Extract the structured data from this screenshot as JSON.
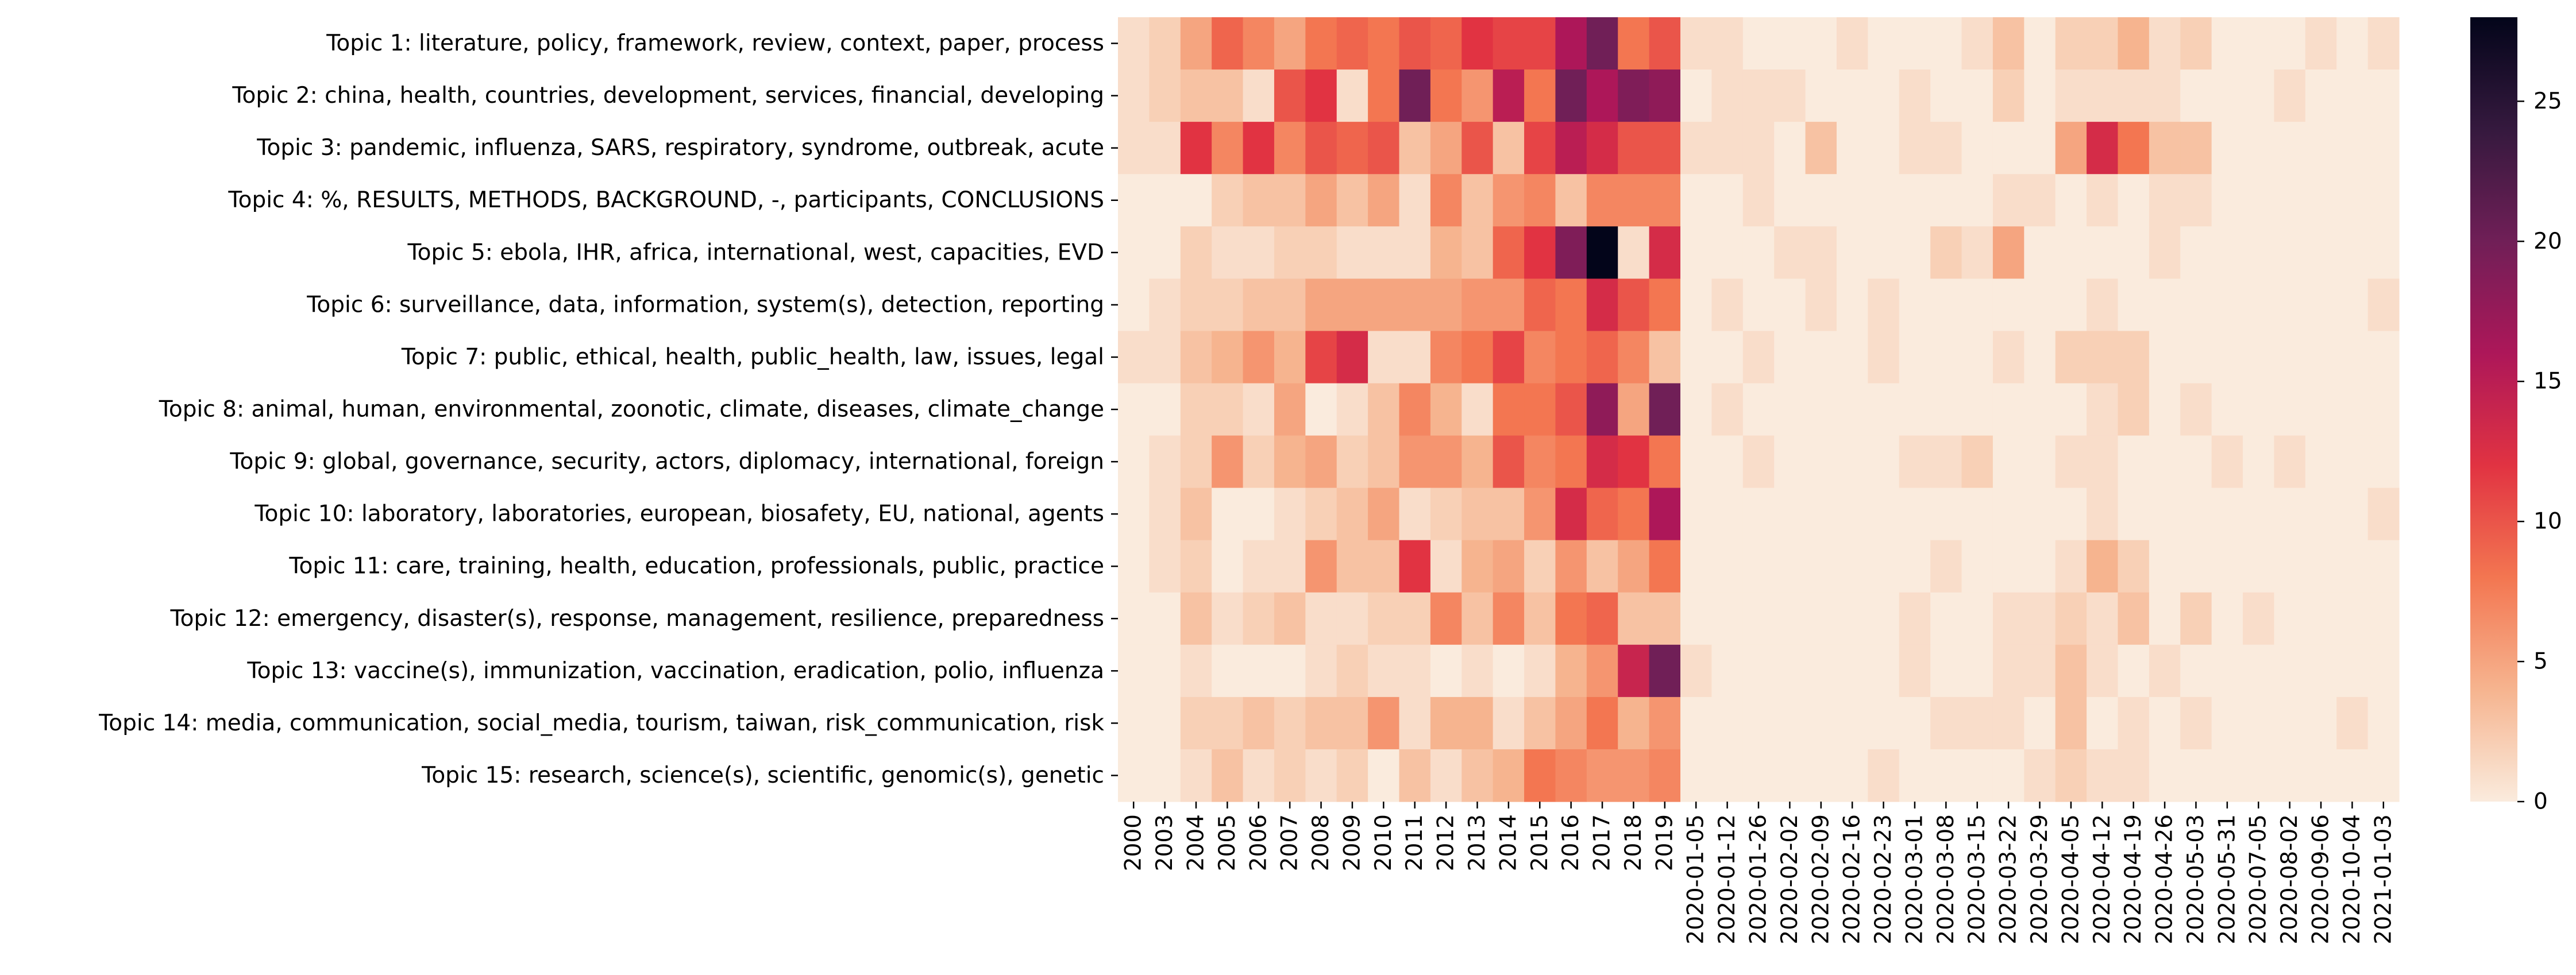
{
  "chart_data": {
    "type": "heatmap",
    "title": "",
    "xlabel": "",
    "ylabel": "",
    "colormap": "rocket_r",
    "colormap_stops": [
      "#faebdd",
      "#f6b48f",
      "#f37651",
      "#e13342",
      "#ad1759",
      "#701f57",
      "#35193e",
      "#03051a"
    ],
    "vmin": 0,
    "vmax": 28,
    "colorbar_ticks": [
      0,
      5,
      10,
      15,
      20,
      25
    ],
    "x": [
      "2000",
      "2003",
      "2004",
      "2005",
      "2006",
      "2007",
      "2008",
      "2009",
      "2010",
      "2011",
      "2012",
      "2013",
      "2014",
      "2015",
      "2016",
      "2017",
      "2018",
      "2019",
      "2020-01-05",
      "2020-01-12",
      "2020-01-26",
      "2020-02-02",
      "2020-02-09",
      "2020-02-16",
      "2020-02-23",
      "2020-03-01",
      "2020-03-08",
      "2020-03-15",
      "2020-03-22",
      "2020-03-29",
      "2020-04-05",
      "2020-04-12",
      "2020-04-19",
      "2020-04-26",
      "2020-05-03",
      "2020-05-31",
      "2020-07-05",
      "2020-08-02",
      "2020-09-06",
      "2020-10-04",
      "2021-01-03"
    ],
    "y": [
      "Topic 1: literature, policy, framework, review, context, paper, process",
      "Topic 2: china, health, countries, development, services, financial, developing",
      "Topic 3: pandemic, influenza, SARS, respiratory, syndrome, outbreak, acute",
      "Topic 4: %, RESULTS, METHODS, BACKGROUND, -, participants, CONCLUSIONS",
      "Topic 5: ebola, IHR, africa, international, west, capacities, EVD",
      "Topic 6: surveillance, data, information, system(s), detection, reporting",
      "Topic 7: public, ethical, health, public_health, law, issues, legal",
      "Topic 8: animal, human, environmental, zoonotic, climate, diseases, climate_change",
      "Topic 9: global, governance, security, actors, diplomacy, international, foreign",
      "Topic 10: laboratory, laboratories, european, biosafety, EU, national, agents",
      "Topic 11: care, training, health, education, professionals, public, practice",
      "Topic 12: emergency, disaster(s), response, management, resilience, preparedness",
      "Topic 13: vaccine(s), immunization, vaccination, eradication, polio, influenza",
      "Topic 14: media, communication, social_media, tourism, taiwan, risk_communication, risk",
      "Topic 15: research, science(s), scientific, genomic(s), genetic"
    ],
    "values": [
      [
        1,
        2,
        5,
        9,
        7,
        5,
        8,
        9,
        8,
        10,
        9,
        12,
        11,
        11,
        16,
        20,
        8,
        10,
        1,
        1,
        0,
        0,
        0,
        1,
        0,
        0,
        0,
        1,
        3,
        0,
        2,
        2,
        4,
        1,
        2,
        0,
        0,
        0,
        1,
        0,
        1
      ],
      [
        1,
        2,
        3,
        3,
        1,
        10,
        12,
        1,
        8,
        20,
        8,
        6,
        15,
        8,
        20,
        16,
        19,
        18,
        0,
        1,
        1,
        1,
        0,
        0,
        0,
        1,
        0,
        0,
        2,
        0,
        1,
        1,
        1,
        1,
        0,
        0,
        0,
        1,
        0,
        0,
        0
      ],
      [
        1,
        1,
        12,
        7,
        12,
        7,
        10,
        9,
        10,
        3,
        5,
        10,
        3,
        11,
        15,
        13,
        10,
        10,
        1,
        1,
        1,
        0,
        3,
        0,
        0,
        1,
        1,
        0,
        0,
        0,
        5,
        13,
        8,
        3,
        3,
        0,
        0,
        0,
        0,
        0,
        0
      ],
      [
        0,
        0,
        0,
        2,
        3,
        3,
        5,
        3,
        5,
        1,
        7,
        3,
        6,
        7,
        3,
        7,
        7,
        7,
        0,
        0,
        1,
        0,
        0,
        0,
        0,
        0,
        0,
        0,
        1,
        1,
        0,
        1,
        0,
        1,
        1,
        0,
        0,
        0,
        0,
        0,
        0
      ],
      [
        0,
        0,
        2,
        1,
        1,
        2,
        2,
        1,
        1,
        1,
        4,
        3,
        9,
        12,
        19,
        28,
        1,
        13,
        0,
        0,
        0,
        1,
        1,
        0,
        0,
        0,
        2,
        1,
        5,
        0,
        0,
        0,
        0,
        1,
        0,
        0,
        0,
        0,
        0,
        0,
        0
      ],
      [
        0,
        1,
        2,
        2,
        3,
        3,
        5,
        5,
        5,
        5,
        5,
        6,
        6,
        9,
        8,
        13,
        10,
        8,
        0,
        1,
        0,
        0,
        1,
        0,
        1,
        0,
        0,
        0,
        0,
        0,
        0,
        1,
        0,
        0,
        0,
        0,
        0,
        0,
        0,
        0,
        1
      ],
      [
        1,
        1,
        3,
        4,
        6,
        4,
        11,
        13,
        1,
        1,
        7,
        8,
        11,
        7,
        8,
        9,
        7,
        3,
        0,
        0,
        1,
        0,
        0,
        0,
        1,
        0,
        0,
        0,
        1,
        0,
        2,
        2,
        2,
        0,
        0,
        0,
        0,
        0,
        0,
        0,
        0
      ],
      [
        0,
        0,
        2,
        2,
        1,
        5,
        0,
        1,
        3,
        7,
        4,
        1,
        8,
        8,
        10,
        18,
        5,
        20,
        0,
        1,
        0,
        0,
        0,
        0,
        0,
        0,
        0,
        0,
        0,
        0,
        0,
        1,
        2,
        0,
        1,
        0,
        0,
        0,
        0,
        0,
        0
      ],
      [
        0,
        1,
        2,
        6,
        2,
        4,
        5,
        2,
        3,
        6,
        6,
        4,
        10,
        7,
        8,
        13,
        12,
        8,
        0,
        0,
        1,
        0,
        0,
        0,
        0,
        1,
        1,
        2,
        0,
        0,
        1,
        1,
        0,
        0,
        0,
        1,
        0,
        1,
        0,
        0,
        0
      ],
      [
        0,
        1,
        3,
        0,
        0,
        1,
        2,
        3,
        5,
        1,
        2,
        3,
        3,
        6,
        13,
        9,
        8,
        16,
        0,
        0,
        0,
        0,
        0,
        0,
        0,
        0,
        0,
        0,
        0,
        0,
        0,
        1,
        0,
        0,
        0,
        0,
        0,
        0,
        0,
        0,
        1
      ],
      [
        0,
        1,
        2,
        0,
        1,
        1,
        6,
        3,
        3,
        12,
        1,
        4,
        5,
        2,
        6,
        3,
        5,
        8,
        0,
        0,
        0,
        0,
        0,
        0,
        0,
        0,
        1,
        0,
        0,
        0,
        1,
        4,
        2,
        0,
        0,
        0,
        0,
        0,
        0,
        0,
        0
      ],
      [
        0,
        0,
        3,
        1,
        2,
        3,
        1,
        1,
        2,
        2,
        7,
        3,
        7,
        3,
        8,
        9,
        3,
        3,
        0,
        0,
        0,
        0,
        0,
        0,
        0,
        1,
        0,
        0,
        1,
        1,
        2,
        1,
        3,
        0,
        2,
        0,
        1,
        0,
        0,
        0,
        0
      ],
      [
        0,
        0,
        1,
        0,
        0,
        0,
        1,
        2,
        1,
        1,
        0,
        1,
        0,
        1,
        4,
        6,
        14,
        20,
        1,
        0,
        0,
        0,
        0,
        0,
        0,
        1,
        0,
        0,
        1,
        1,
        3,
        1,
        0,
        1,
        0,
        0,
        0,
        0,
        0,
        0,
        0
      ],
      [
        0,
        0,
        2,
        2,
        3,
        2,
        3,
        3,
        6,
        1,
        4,
        4,
        1,
        3,
        5,
        8,
        4,
        6,
        0,
        0,
        0,
        0,
        0,
        0,
        0,
        0,
        1,
        1,
        1,
        0,
        3,
        0,
        1,
        0,
        1,
        0,
        0,
        0,
        0,
        1,
        0
      ],
      [
        0,
        0,
        1,
        3,
        1,
        2,
        1,
        2,
        0,
        3,
        1,
        3,
        4,
        8,
        7,
        6,
        6,
        7,
        0,
        0,
        0,
        0,
        0,
        0,
        1,
        0,
        0,
        0,
        0,
        1,
        2,
        1,
        1,
        0,
        0,
        0,
        0,
        0,
        0,
        0,
        0
      ]
    ]
  }
}
